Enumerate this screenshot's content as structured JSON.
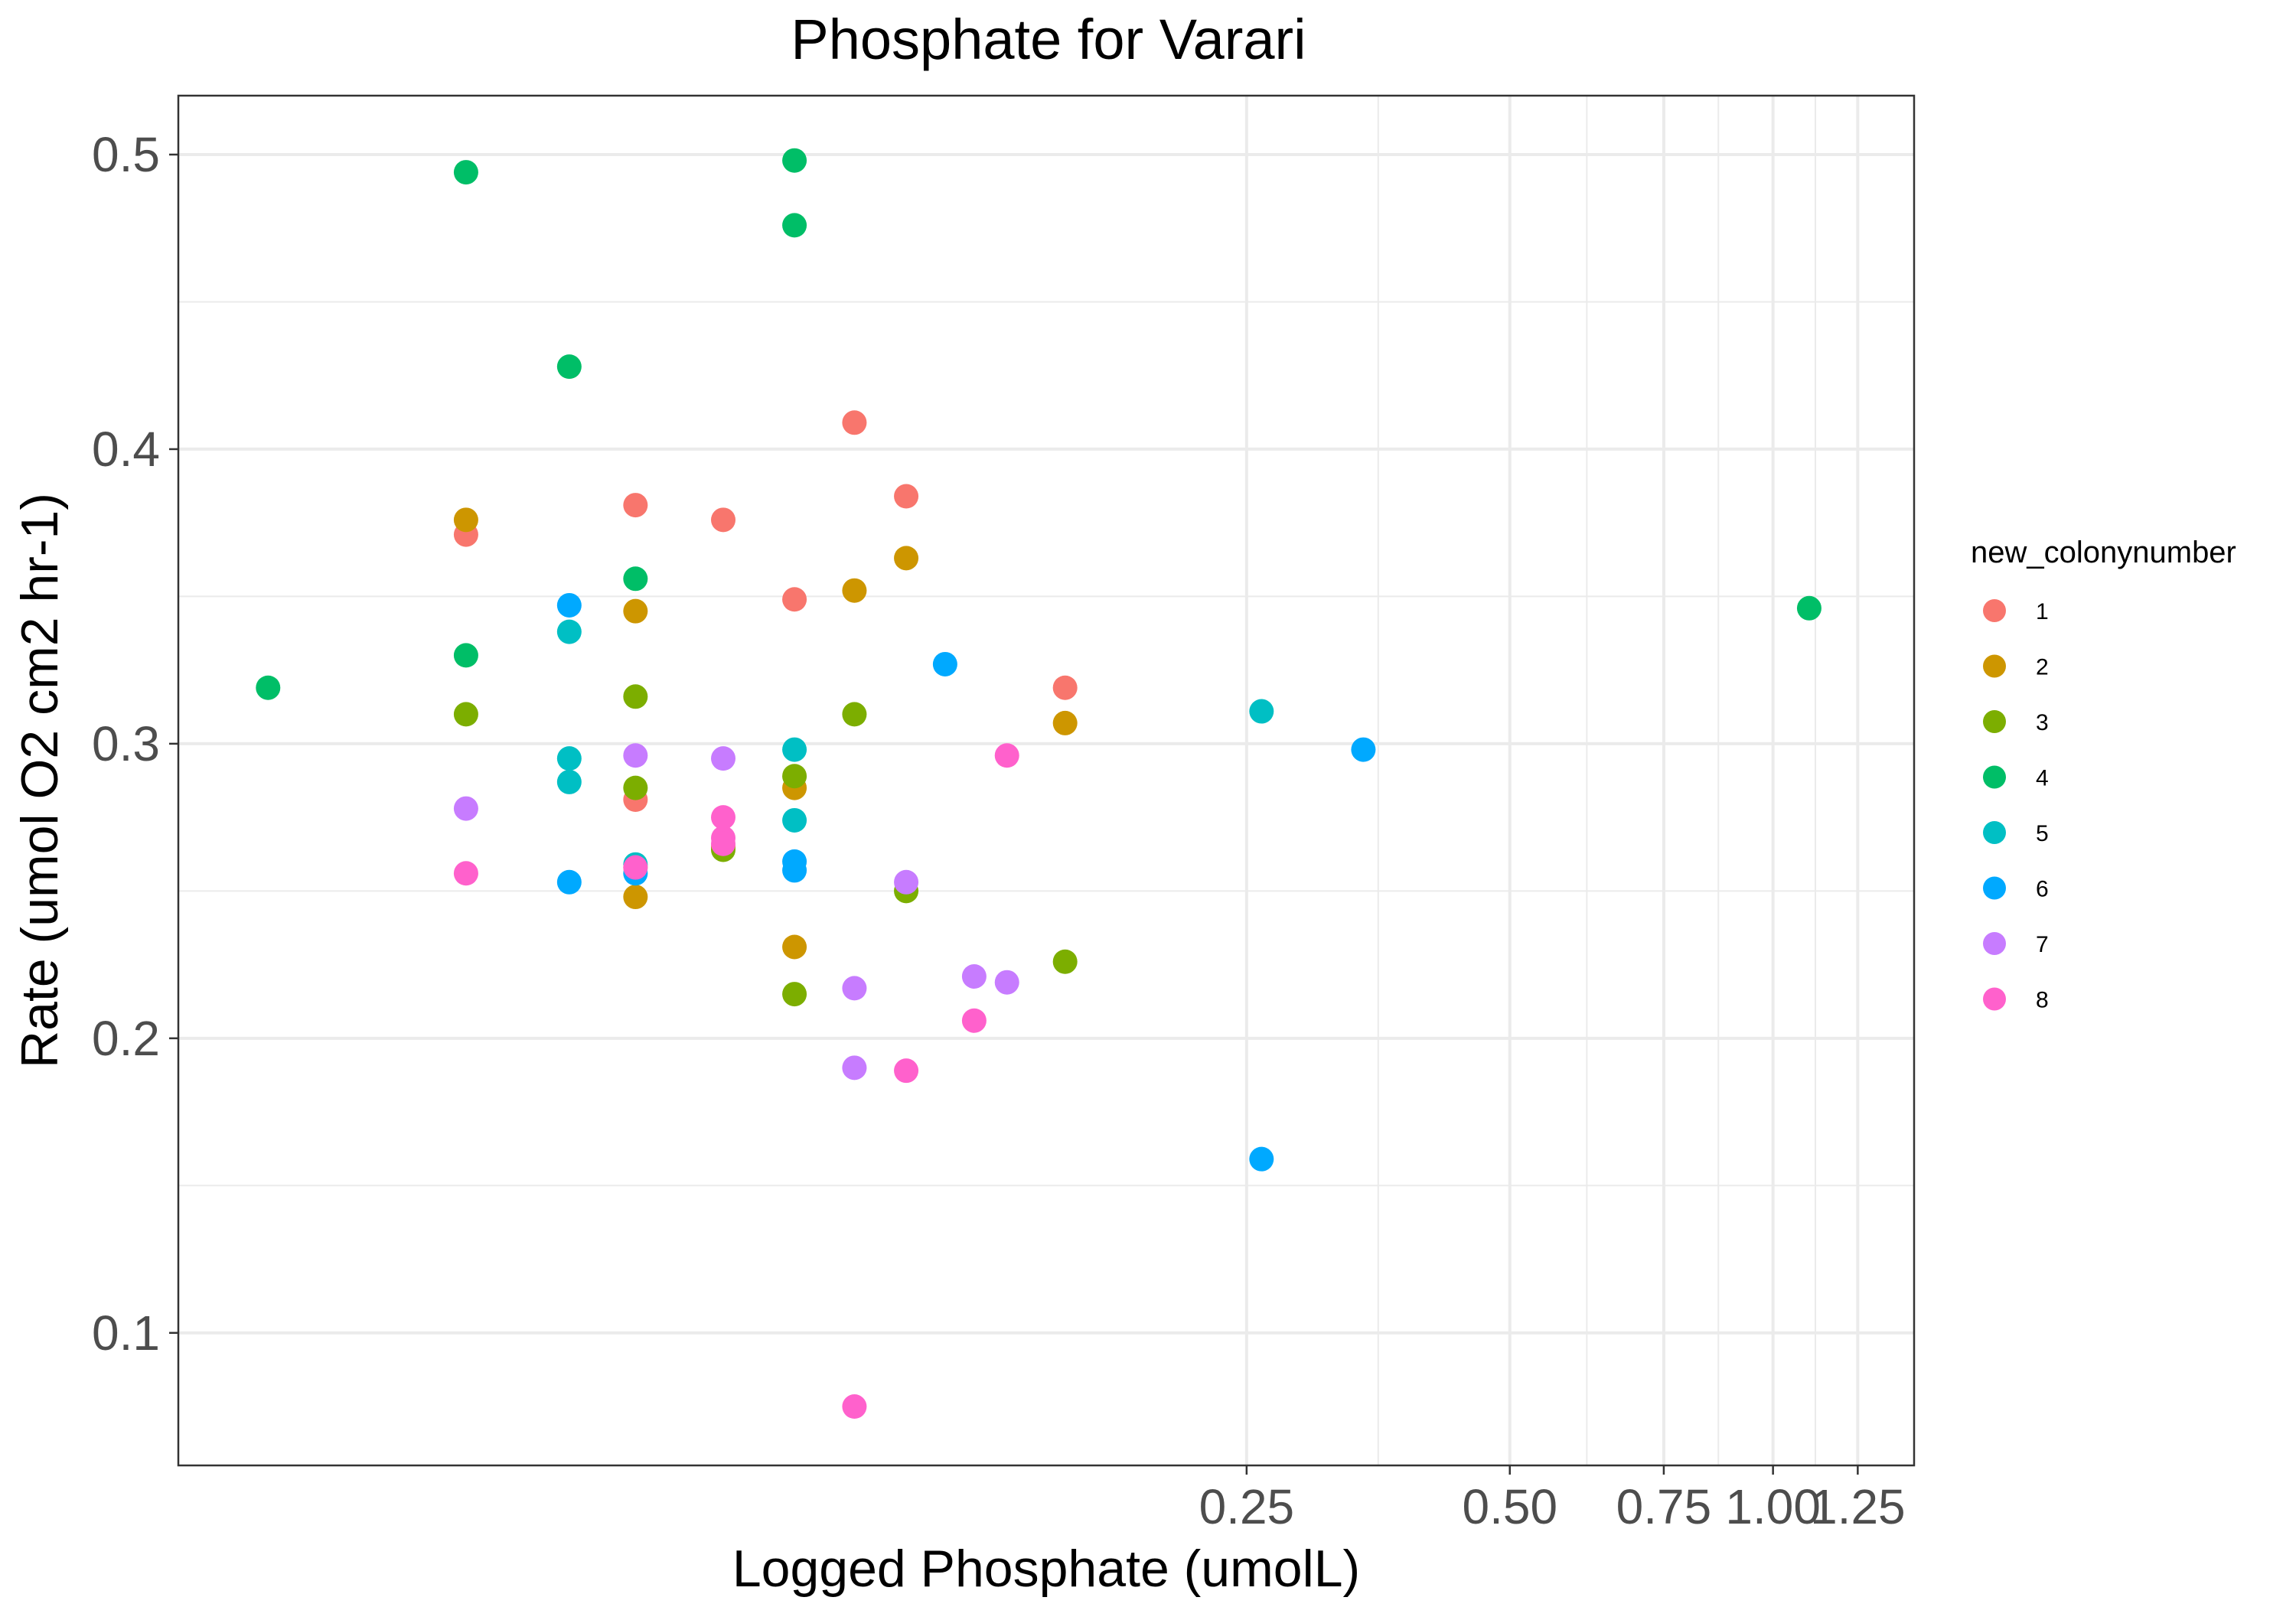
{
  "chart_data": {
    "type": "scatter",
    "title": "Phosphate for Varari",
    "xlabel": "Logged Phosphate (umolL)",
    "ylabel": "Rate (umol O2 cm2 hr-1)",
    "x_scale": "log",
    "xlim": [
      0.015,
      1.45
    ],
    "ylim": [
      0.055,
      0.52
    ],
    "x_ticks": [
      0.25,
      0.5,
      0.75,
      1.0,
      1.25
    ],
    "x_tick_labels": [
      "0.25",
      "0.50",
      "0.75",
      "1.00",
      "1.25"
    ],
    "y_ticks": [
      0.1,
      0.2,
      0.3,
      0.4,
      0.5
    ],
    "y_tick_labels": [
      "0.1",
      "0.2",
      "0.3",
      "0.4",
      "0.5"
    ],
    "grid": true,
    "legend": {
      "title": "new_colonynumber",
      "position": "right"
    },
    "series": [
      {
        "name": "1",
        "color": "#F8766D",
        "points": [
          [
            0.032,
            0.371
          ],
          [
            0.05,
            0.381
          ],
          [
            0.05,
            0.281
          ],
          [
            0.05,
            0.258
          ],
          [
            0.063,
            0.376
          ],
          [
            0.076,
            0.349
          ],
          [
            0.089,
            0.409
          ],
          [
            0.102,
            0.384
          ],
          [
            0.155,
            0.319
          ]
        ]
      },
      {
        "name": "2",
        "color": "#CD9600",
        "points": [
          [
            0.032,
            0.376
          ],
          [
            0.05,
            0.345
          ],
          [
            0.05,
            0.248
          ],
          [
            0.063,
            0.265
          ],
          [
            0.076,
            0.285
          ],
          [
            0.076,
            0.231
          ],
          [
            0.089,
            0.352
          ],
          [
            0.102,
            0.363
          ],
          [
            0.155,
            0.307
          ]
        ]
      },
      {
        "name": "3",
        "color": "#7CAE00",
        "points": [
          [
            0.032,
            0.31
          ],
          [
            0.05,
            0.316
          ],
          [
            0.05,
            0.285
          ],
          [
            0.063,
            0.264
          ],
          [
            0.076,
            0.289
          ],
          [
            0.076,
            0.215
          ],
          [
            0.089,
            0.31
          ],
          [
            0.102,
            0.25
          ],
          [
            0.155,
            0.226
          ]
        ]
      },
      {
        "name": "4",
        "color": "#00BE67",
        "points": [
          [
            0.019,
            0.319
          ],
          [
            0.032,
            0.494
          ],
          [
            0.032,
            0.33
          ],
          [
            0.042,
            0.428
          ],
          [
            0.05,
            0.356
          ],
          [
            0.076,
            0.498
          ],
          [
            0.076,
            0.476
          ],
          [
            1.1,
            0.346
          ]
        ]
      },
      {
        "name": "5",
        "color": "#00BFC4",
        "points": [
          [
            0.042,
            0.338
          ],
          [
            0.042,
            0.295
          ],
          [
            0.042,
            0.287
          ],
          [
            0.05,
            0.259
          ],
          [
            0.076,
            0.298
          ],
          [
            0.076,
            0.274
          ],
          [
            0.26,
            0.311
          ]
        ]
      },
      {
        "name": "6",
        "color": "#00A9FF",
        "points": [
          [
            0.042,
            0.347
          ],
          [
            0.042,
            0.253
          ],
          [
            0.05,
            0.256
          ],
          [
            0.076,
            0.26
          ],
          [
            0.076,
            0.257
          ],
          [
            0.113,
            0.327
          ],
          [
            0.26,
            0.159
          ],
          [
            0.34,
            0.298
          ]
        ]
      },
      {
        "name": "7",
        "color": "#C77CFF",
        "points": [
          [
            0.032,
            0.278
          ],
          [
            0.05,
            0.296
          ],
          [
            0.063,
            0.295
          ],
          [
            0.089,
            0.217
          ],
          [
            0.089,
            0.19
          ],
          [
            0.102,
            0.253
          ],
          [
            0.122,
            0.221
          ],
          [
            0.133,
            0.219
          ]
        ]
      },
      {
        "name": "8",
        "color": "#FF61CC",
        "points": [
          [
            0.032,
            0.256
          ],
          [
            0.05,
            0.258
          ],
          [
            0.063,
            0.275
          ],
          [
            0.063,
            0.268
          ],
          [
            0.063,
            0.266
          ],
          [
            0.089,
            0.075
          ],
          [
            0.102,
            0.189
          ],
          [
            0.122,
            0.206
          ],
          [
            0.133,
            0.296
          ]
        ]
      }
    ]
  }
}
